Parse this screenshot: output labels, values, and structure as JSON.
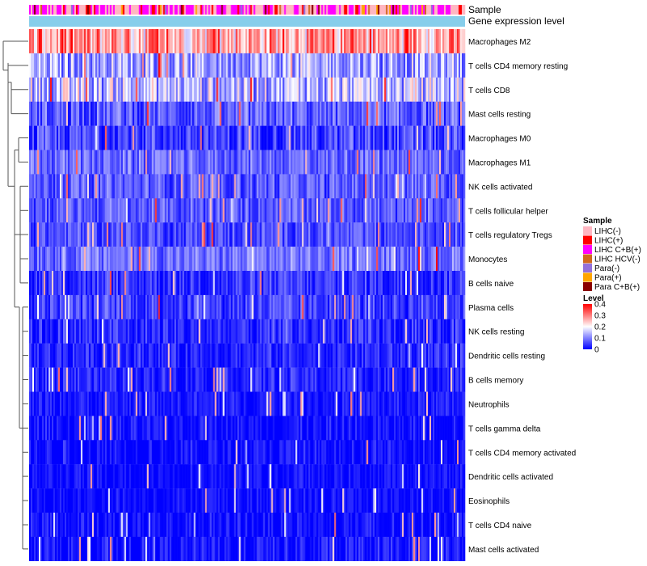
{
  "chart_data": {
    "type": "heatmap",
    "title": "",
    "annotation_tracks": [
      "Sample",
      "Gene expression level"
    ],
    "rows": [
      {
        "label": "Macrophages M2",
        "mean": 0.27,
        "spread": 0.1
      },
      {
        "label": "T cells CD4 memory resting",
        "mean": 0.13,
        "spread": 0.08
      },
      {
        "label": "T cells CD8",
        "mean": 0.15,
        "spread": 0.09
      },
      {
        "label": "Mast cells resting",
        "mean": 0.07,
        "spread": 0.06
      },
      {
        "label": "Macrophages M0",
        "mean": 0.05,
        "spread": 0.06
      },
      {
        "label": "Macrophages M1",
        "mean": 0.08,
        "spread": 0.05
      },
      {
        "label": "NK cells activated",
        "mean": 0.07,
        "spread": 0.05
      },
      {
        "label": "T cells follicular helper",
        "mean": 0.07,
        "spread": 0.05
      },
      {
        "label": "T cells regulatory  Tregs",
        "mean": 0.06,
        "spread": 0.05
      },
      {
        "label": "Monocytes",
        "mean": 0.09,
        "spread": 0.05
      },
      {
        "label": "B cells naive",
        "mean": 0.04,
        "spread": 0.05
      },
      {
        "label": "Plasma cells",
        "mean": 0.05,
        "spread": 0.05
      },
      {
        "label": "NK cells resting",
        "mean": 0.03,
        "spread": 0.05
      },
      {
        "label": "Dendritic cells resting",
        "mean": 0.03,
        "spread": 0.04
      },
      {
        "label": "B cells memory",
        "mean": 0.03,
        "spread": 0.04
      },
      {
        "label": "Neutrophils",
        "mean": 0.02,
        "spread": 0.03
      },
      {
        "label": "T cells gamma delta",
        "mean": 0.01,
        "spread": 0.04
      },
      {
        "label": "T cells CD4 memory activated",
        "mean": 0.01,
        "spread": 0.04
      },
      {
        "label": "Dendritic cells activated",
        "mean": 0.01,
        "spread": 0.03
      },
      {
        "label": "Eosinophils",
        "mean": 0.01,
        "spread": 0.03
      },
      {
        "label": "T cells CD4 naive",
        "mean": 0.01,
        "spread": 0.04
      },
      {
        "label": "Mast cells activated",
        "mean": 0.01,
        "spread": 0.05
      }
    ],
    "n_columns": 270,
    "sample_groups": [
      {
        "label": "LIHC(-)",
        "color": "#FFB6C1",
        "weight": 0.42
      },
      {
        "label": "LIHC(+)",
        "color": "#FF0000",
        "weight": 0.1
      },
      {
        "label": "LIHC C+B(+)",
        "color": "#FF00FF",
        "weight": 0.36
      },
      {
        "label": "LIHC HCV(-)",
        "color": "#D2691E",
        "weight": 0.02
      },
      {
        "label": "Para(-)",
        "color": "#9370DB",
        "weight": 0.03
      },
      {
        "label": "Para(+)",
        "color": "#FFA500",
        "weight": 0.03
      },
      {
        "label": "Para C+B(+)",
        "color": "#8B0000",
        "weight": 0.04
      }
    ],
    "expression_color": "#87CEEB",
    "level_legend": {
      "title": "Level",
      "ticks": [
        "0.4",
        "0.3",
        "0.2",
        "0.1",
        "0"
      ],
      "range": [
        0,
        0.4
      ],
      "colors": [
        "#0000FF",
        "#FFFFFF",
        "#FF0000"
      ]
    },
    "sample_legend_title": "Sample"
  }
}
